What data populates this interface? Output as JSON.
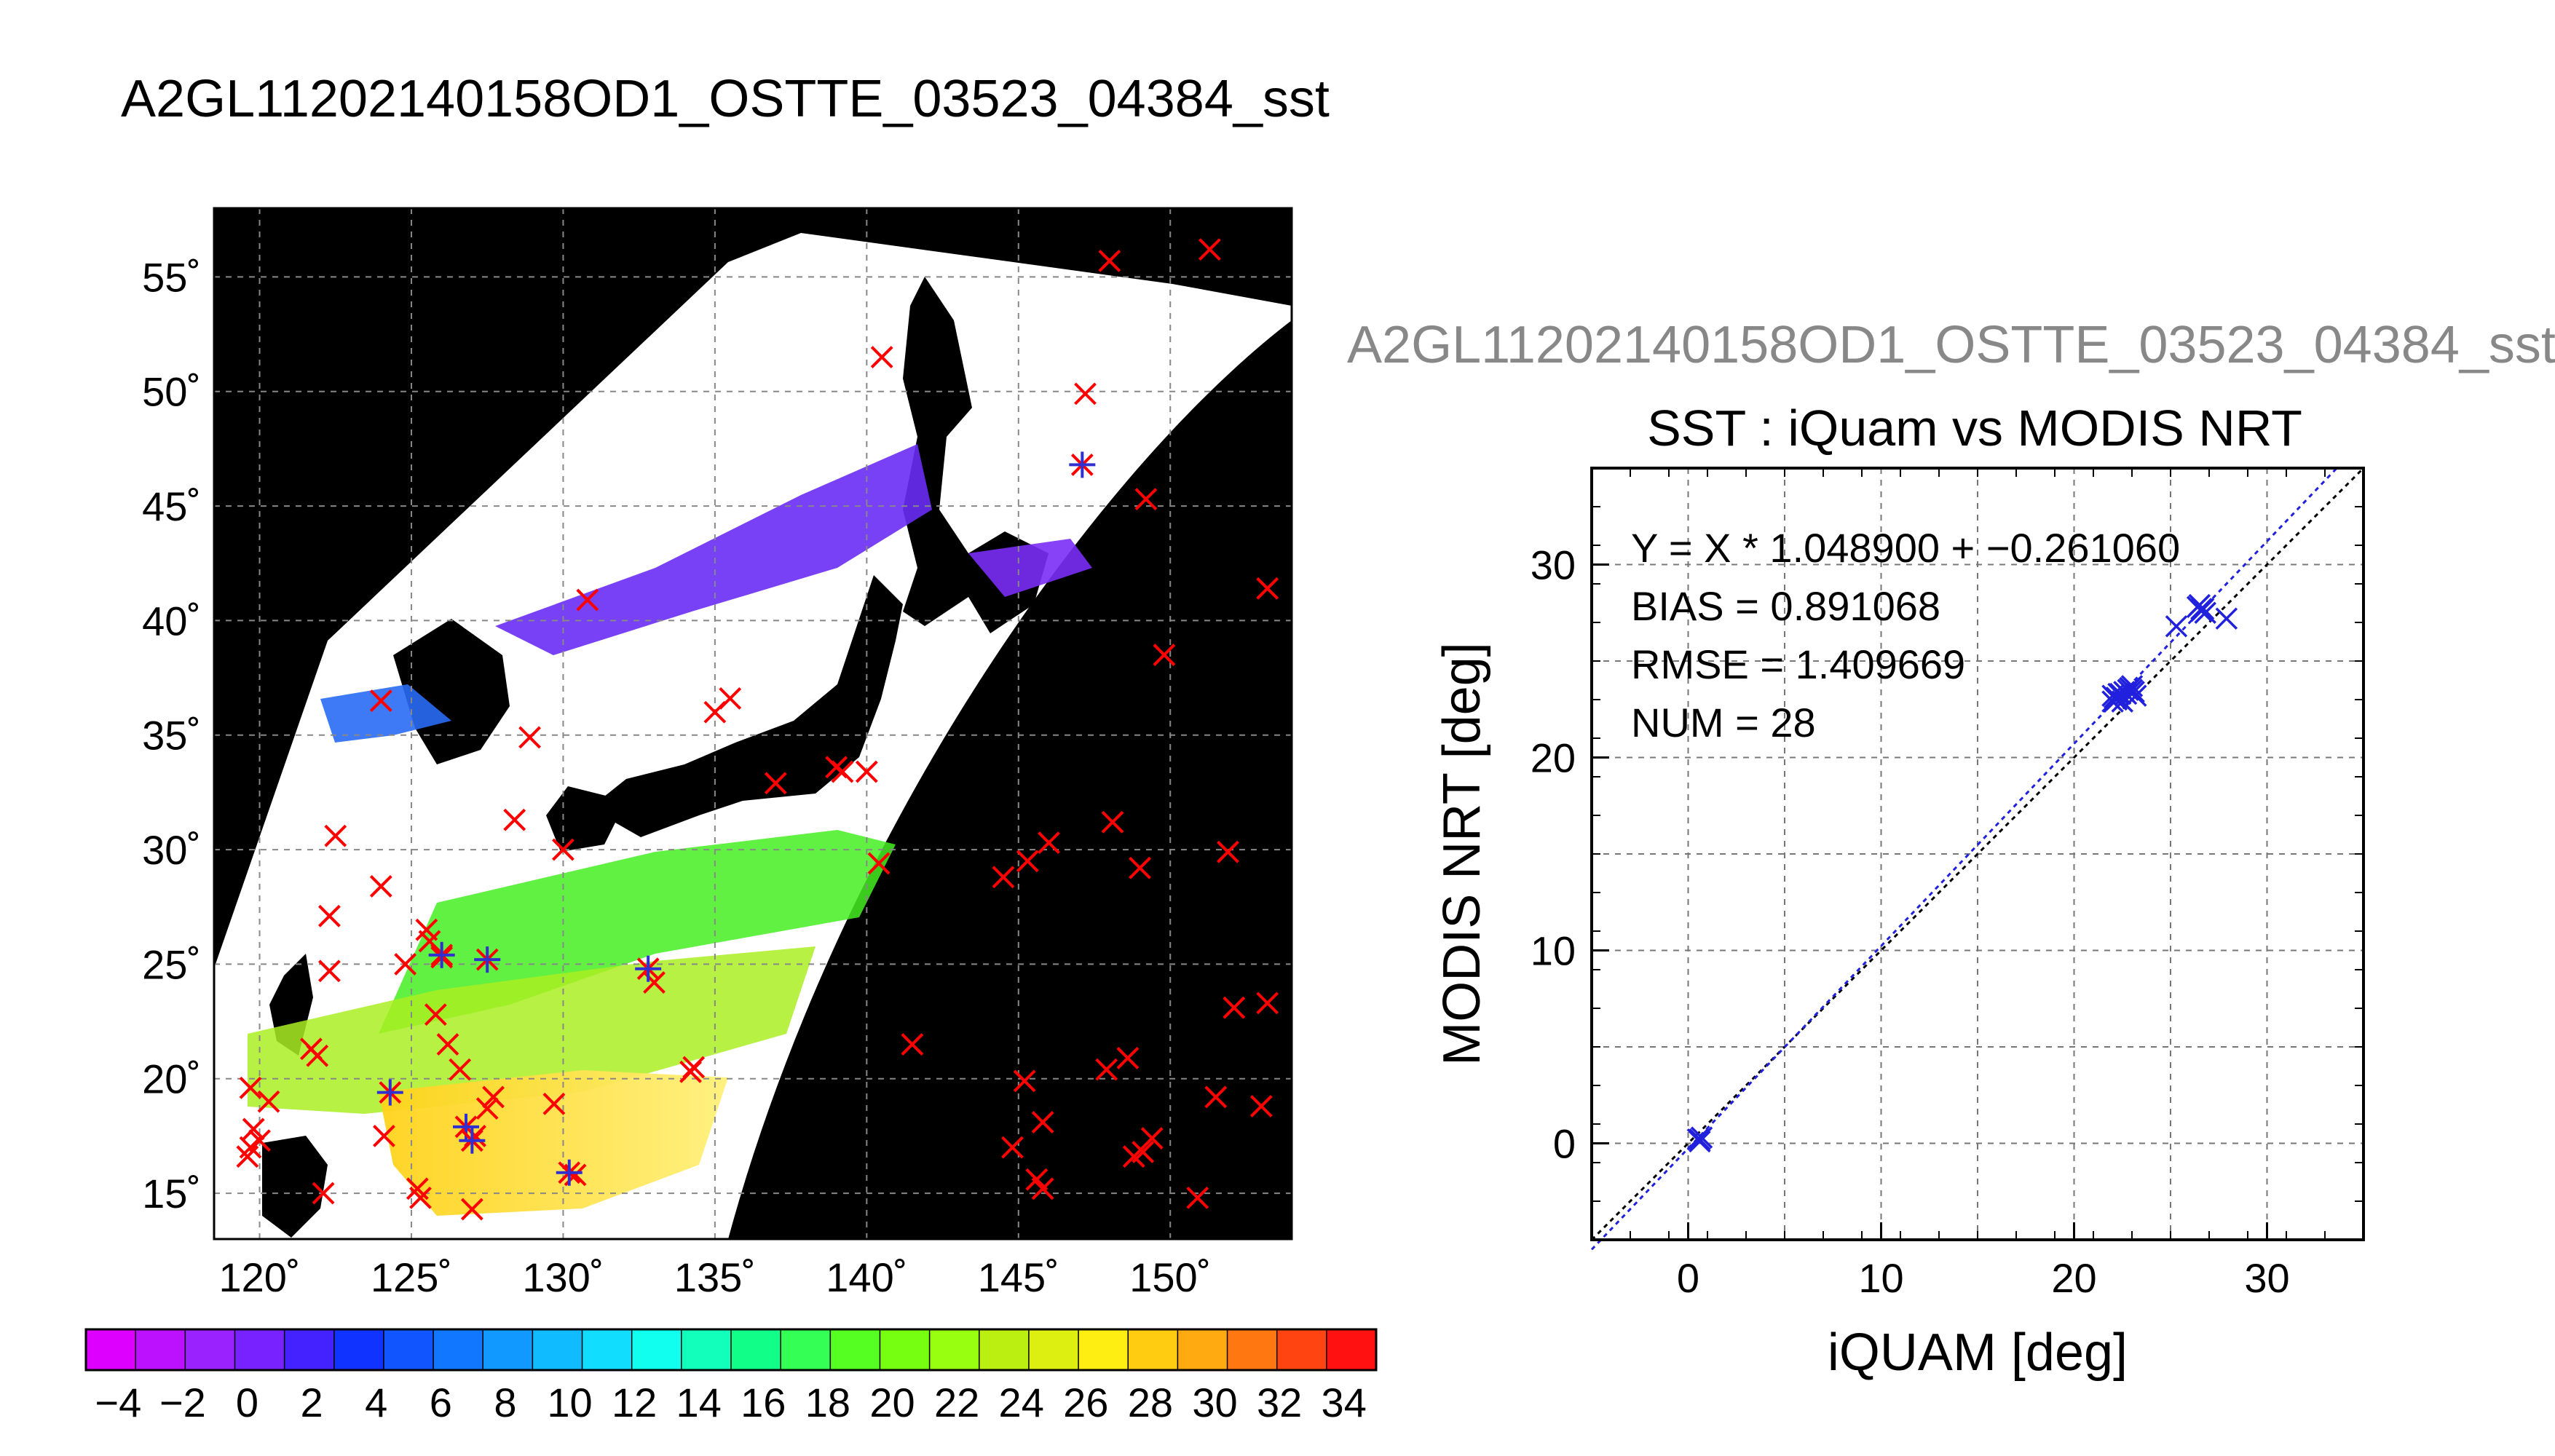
{
  "page_title": "A2GL11202140158OD1_OSTTE_03523_04384_sst",
  "chart_data": [
    {
      "type": "map",
      "title": "A2GL11202140158OD1_OSTTE_03523_04384_sst",
      "lon_range": [
        118.5,
        154
      ],
      "lat_range": [
        13,
        58
      ],
      "x_ticks": [
        120,
        125,
        130,
        135,
        140,
        145,
        150
      ],
      "y_ticks": [
        15,
        20,
        25,
        30,
        35,
        40,
        45,
        50,
        55
      ],
      "x_tick_labels": [
        "120˚",
        "125˚",
        "130˚",
        "135˚",
        "140˚",
        "145˚",
        "150˚"
      ],
      "y_tick_labels": [
        "15˚",
        "20˚",
        "25˚",
        "30˚",
        "35˚",
        "40˚",
        "45˚",
        "50˚",
        "55˚"
      ],
      "grid": true,
      "colors": {
        "background": "#000000",
        "swath": "#ffffff",
        "unmatched_marker": "#ff0000",
        "matched_marker": "#3030d0"
      },
      "colorbar": {
        "range": [
          -5,
          35
        ],
        "tick_labels": [
          "−4",
          "−2",
          "0",
          "2",
          "4",
          "6",
          "8",
          "10",
          "12",
          "14",
          "16",
          "18",
          "20",
          "22",
          "24",
          "26",
          "28",
          "30",
          "32",
          "34"
        ],
        "colors": [
          "#dd00ff",
          "#bb11ff",
          "#9922ff",
          "#7722ff",
          "#4422ff",
          "#1133ff",
          "#1155ff",
          "#1177ff",
          "#1199ff",
          "#11bbff",
          "#11ddff",
          "#11ffee",
          "#11ffbb",
          "#11ff88",
          "#33ff55",
          "#55ff22",
          "#77ff11",
          "#99ff11",
          "#bbee11",
          "#ddee11",
          "#ffee11",
          "#ffcc11",
          "#ffaa11",
          "#ff7711",
          "#ff4411",
          "#ff1111"
        ]
      },
      "unmatched_points": [
        {
          "lon": 148,
          "lat": 55.7
        },
        {
          "lon": 151.3,
          "lat": 56.2
        },
        {
          "lon": 140.5,
          "lat": 51.5
        },
        {
          "lon": 147.2,
          "lat": 49.9
        },
        {
          "lon": 149.2,
          "lat": 45.3
        },
        {
          "lon": 153.2,
          "lat": 41.4
        },
        {
          "lon": 130.8,
          "lat": 40.9
        },
        {
          "lon": 149.8,
          "lat": 38.5
        },
        {
          "lon": 124,
          "lat": 36.5
        },
        {
          "lon": 135,
          "lat": 36
        },
        {
          "lon": 135.5,
          "lat": 36.6
        },
        {
          "lon": 128.9,
          "lat": 34.9
        },
        {
          "lon": 139,
          "lat": 33.6
        },
        {
          "lon": 139.2,
          "lat": 33.4
        },
        {
          "lon": 140,
          "lat": 33.4
        },
        {
          "lon": 137,
          "lat": 32.9
        },
        {
          "lon": 128.4,
          "lat": 31.3
        },
        {
          "lon": 122.5,
          "lat": 30.6
        },
        {
          "lon": 130,
          "lat": 30
        },
        {
          "lon": 140.4,
          "lat": 29.4
        },
        {
          "lon": 146,
          "lat": 30.3
        },
        {
          "lon": 145.3,
          "lat": 29.5
        },
        {
          "lon": 144.5,
          "lat": 28.8
        },
        {
          "lon": 148.1,
          "lat": 31.2
        },
        {
          "lon": 149,
          "lat": 29.2
        },
        {
          "lon": 151.9,
          "lat": 29.9
        },
        {
          "lon": 124,
          "lat": 28.4
        },
        {
          "lon": 122.3,
          "lat": 27.1
        },
        {
          "lon": 125.5,
          "lat": 26.5
        },
        {
          "lon": 125.6,
          "lat": 26
        },
        {
          "lon": 126,
          "lat": 25.3
        },
        {
          "lon": 124.8,
          "lat": 25
        },
        {
          "lon": 122.3,
          "lat": 24.7
        },
        {
          "lon": 125.8,
          "lat": 22.8
        },
        {
          "lon": 133,
          "lat": 24.2
        },
        {
          "lon": 152.1,
          "lat": 23.1
        },
        {
          "lon": 153.2,
          "lat": 23.3
        },
        {
          "lon": 141.5,
          "lat": 21.5
        },
        {
          "lon": 121.7,
          "lat": 21.3
        },
        {
          "lon": 121.9,
          "lat": 21
        },
        {
          "lon": 126.2,
          "lat": 21.5
        },
        {
          "lon": 126.6,
          "lat": 20.4
        },
        {
          "lon": 134.2,
          "lat": 20.3
        },
        {
          "lon": 134.3,
          "lat": 20.5
        },
        {
          "lon": 145.2,
          "lat": 19.9
        },
        {
          "lon": 147.9,
          "lat": 20.4
        },
        {
          "lon": 148.6,
          "lat": 20.9
        },
        {
          "lon": 119.7,
          "lat": 19.6
        },
        {
          "lon": 120.3,
          "lat": 19
        },
        {
          "lon": 127.5,
          "lat": 18.7
        },
        {
          "lon": 127.7,
          "lat": 19.2
        },
        {
          "lon": 129.7,
          "lat": 18.9
        },
        {
          "lon": 151.5,
          "lat": 19.2
        },
        {
          "lon": 153,
          "lat": 18.8
        },
        {
          "lon": 119.8,
          "lat": 17.8
        },
        {
          "lon": 120,
          "lat": 17.3
        },
        {
          "lon": 119.7,
          "lat": 17
        },
        {
          "lon": 119.6,
          "lat": 16.6
        },
        {
          "lon": 124.1,
          "lat": 17.5
        },
        {
          "lon": 127.1,
          "lat": 17.5
        },
        {
          "lon": 145.8,
          "lat": 18.1
        },
        {
          "lon": 149.4,
          "lat": 17.4
        },
        {
          "lon": 149.1,
          "lat": 16.8
        },
        {
          "lon": 148.8,
          "lat": 16.6
        },
        {
          "lon": 144.8,
          "lat": 17
        },
        {
          "lon": 145.6,
          "lat": 15.6
        },
        {
          "lon": 145.8,
          "lat": 15.2
        },
        {
          "lon": 122.1,
          "lat": 15
        },
        {
          "lon": 125.2,
          "lat": 15.2
        },
        {
          "lon": 125.3,
          "lat": 14.8
        },
        {
          "lon": 127,
          "lat": 14.3
        },
        {
          "lon": 130.4,
          "lat": 15.8
        },
        {
          "lon": 150.9,
          "lat": 14.8
        }
      ],
      "matched_points": [
        {
          "lon": 147.1,
          "lat": 46.8
        },
        {
          "lon": 126,
          "lat": 25.4
        },
        {
          "lon": 127.5,
          "lat": 25.2
        },
        {
          "lon": 132.8,
          "lat": 24.8
        },
        {
          "lon": 124.3,
          "lat": 19.4
        },
        {
          "lon": 126.8,
          "lat": 17.9
        },
        {
          "lon": 127,
          "lat": 17.3
        },
        {
          "lon": 130.2,
          "lat": 15.9
        }
      ]
    },
    {
      "type": "scatter",
      "subtitle": "A2GL11202140158OD1_OSTTE_03523_04384_sst",
      "title": "SST : iQuam vs MODIS NRT",
      "xlabel": "iQUAM [deg]",
      "ylabel": "MODIS NRT [deg]",
      "xlim": [
        -5,
        35
      ],
      "ylim": [
        -5,
        35
      ],
      "x_ticks": [
        0,
        10,
        20,
        30
      ],
      "y_ticks": [
        0,
        10,
        20,
        30
      ],
      "x_tick_labels": [
        "0",
        "10",
        "20",
        "30"
      ],
      "y_tick_labels": [
        "0",
        "10",
        "20",
        "30"
      ],
      "grid": true,
      "stats": {
        "regression": "Y = X * 1.048900 + −0.261060",
        "bias": "BIAS = 0.891068",
        "rmse": "RMSE = 1.409669",
        "num": "NUM = 28"
      },
      "slope": 1.0489,
      "intercept": -0.26106,
      "x": [
        0.5,
        0.7,
        0.6,
        22,
        22.2,
        22.3,
        22.5,
        22,
        22.1,
        22.6,
        22.9,
        23.1,
        23.2,
        22.8,
        23,
        25.3,
        26.4,
        26.6,
        26.5,
        26.8,
        27.9,
        22.4,
        22.2,
        23.0,
        26.7,
        0.6,
        22.7,
        26.6
      ],
      "y": [
        0.2,
        0.3,
        0.1,
        23.2,
        23,
        23.3,
        22.9,
        22.9,
        23.1,
        23.4,
        23.6,
        23.4,
        23.2,
        23.5,
        23.7,
        26.8,
        27.8,
        27.6,
        27.9,
        27.5,
        27.2,
        23.3,
        23.1,
        23.5,
        27.7,
        0.2,
        23.3,
        27.7
      ],
      "colors": {
        "points": "#2020dd",
        "fit_line": "#2020dd",
        "identity_line": "#000000"
      }
    }
  ]
}
